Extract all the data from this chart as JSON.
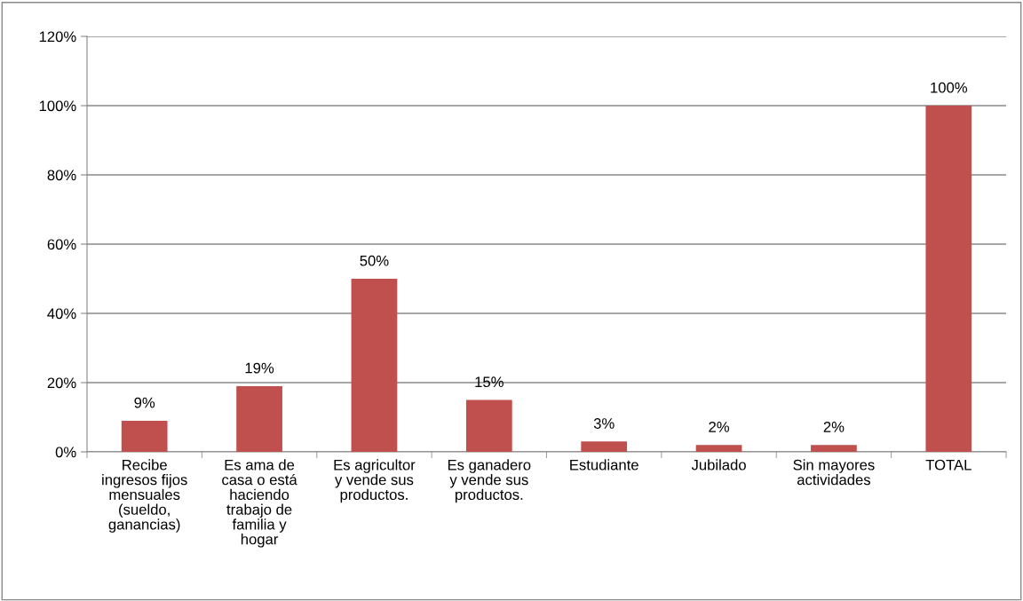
{
  "chart_data": {
    "type": "bar",
    "categories": [
      "Recibe\ningresos fijos\nmensuales\n(sueldo,\nganancias)",
      "Es ama de\ncasa o está\nhaciendo\ntrabajo de\nfamilia y\nhogar",
      "Es agricultor\ny vende sus\nproductos.",
      "Es ganadero\ny vende sus\nproductos.",
      "Estudiante",
      "Jubilado",
      "Sin mayores\nactividades",
      "TOTAL"
    ],
    "values": [
      9,
      19,
      50,
      15,
      3,
      2,
      2,
      100
    ],
    "value_labels": [
      "9%",
      "19%",
      "50%",
      "15%",
      "3%",
      "2%",
      "2%",
      "100%"
    ],
    "color": "#c0504d",
    "ylim": [
      0,
      120
    ],
    "yticks": [
      {
        "value": 0,
        "label": "0%"
      },
      {
        "value": 20,
        "label": "20%"
      },
      {
        "value": 40,
        "label": "40%"
      },
      {
        "value": 60,
        "label": "60%"
      },
      {
        "value": 80,
        "label": "80%"
      },
      {
        "value": 100,
        "label": "100%"
      },
      {
        "value": 120,
        "label": "120%"
      }
    ],
    "grid": "y",
    "legend": false
  }
}
